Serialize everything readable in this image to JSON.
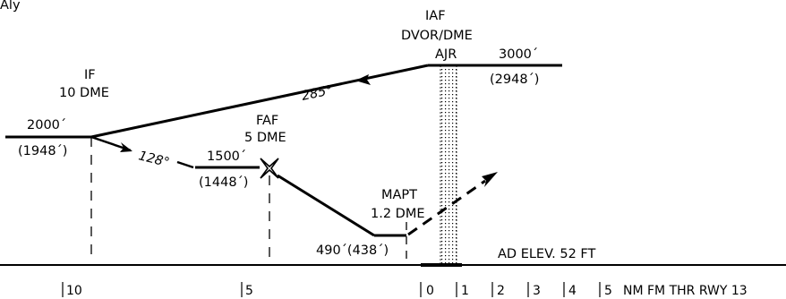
{
  "header_partial": "Aly",
  "fixes": {
    "iaf": {
      "line1": "IAF",
      "line2": "DVOR/DME",
      "ident": "AJR",
      "alt": "3000´",
      "alt_agl": "(2948´)"
    },
    "if": {
      "line1": "IF",
      "line2": "10 DME",
      "alt": "2000´",
      "alt_agl": "(1948´)"
    },
    "faf": {
      "line1": "FAF",
      "line2": "5 DME",
      "alt": "1500´",
      "alt_agl": "(1448´)"
    },
    "mapt": {
      "line1": "MAPT",
      "line2": "1.2 DME",
      "alt": "490´(438´)"
    }
  },
  "tracks": {
    "outbound_course": "285°",
    "inbound_course": "128°"
  },
  "aerodrome": {
    "elevation": "AD ELEV. 52 FT"
  },
  "distance_scale": {
    "ticks": [
      "10",
      "5",
      "0",
      "1",
      "2",
      "3",
      "4",
      "5"
    ],
    "caption": "NM FM THR RWY 13"
  },
  "colors": {
    "ink": "#000000",
    "background": "#ffffff"
  }
}
